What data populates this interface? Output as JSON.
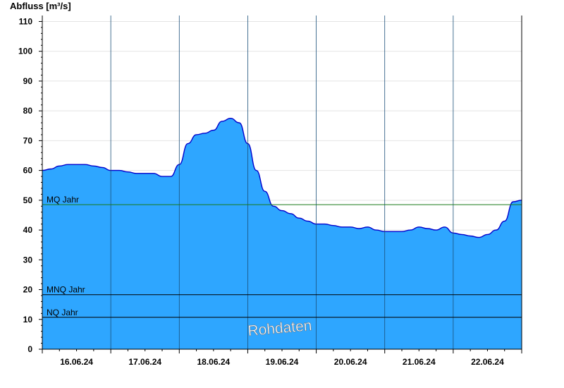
{
  "chart_data": {
    "type": "area",
    "ylabel": "Abfluss [m³/s]",
    "ylim": [
      0,
      112
    ],
    "yticks": [
      0,
      10,
      20,
      30,
      40,
      50,
      60,
      70,
      80,
      90,
      100,
      110
    ],
    "xlim_days": [
      "15.06.24 12:00",
      "22.06.24 12:00"
    ],
    "day_boundaries": [
      "16.06.24",
      "17.06.24",
      "18.06.24",
      "19.06.24",
      "20.06.24",
      "21.06.24",
      "22.06.24"
    ],
    "xtick_labels": [
      "16.06.24",
      "17.06.24",
      "18.06.24",
      "19.06.24",
      "20.06.24",
      "21.06.24",
      "22.06.24"
    ],
    "grid": true,
    "fill_color": "#2ea6ff",
    "line_color": "#0000cc",
    "watermark": "Rohdaten",
    "reference_lines": [
      {
        "label": "MQ Jahr",
        "value": 48.5,
        "color": "#1a7a1a"
      },
      {
        "label": "MNQ Jahr",
        "value": 18.3,
        "color": "#000000"
      },
      {
        "label": "NQ Jahr",
        "value": 10.7,
        "color": "#000000"
      }
    ],
    "series": [
      {
        "x": [
          "15.06.24 12:00",
          "15.06.24 15:00",
          "15.06.24 18:00",
          "15.06.24 21:00",
          "16.06.24 00:00",
          "16.06.24 03:00",
          "16.06.24 06:00",
          "16.06.24 09:00",
          "16.06.24 12:00",
          "16.06.24 15:00",
          "16.06.24 18:00",
          "16.06.24 21:00",
          "17.06.24 00:00",
          "17.06.24 03:00",
          "17.06.24 06:00",
          "17.06.24 09:00",
          "17.06.24 12:00",
          "17.06.24 15:00",
          "17.06.24 18:00",
          "17.06.24 21:00",
          "18.06.24 00:00",
          "18.06.24 03:00",
          "18.06.24 06:00",
          "18.06.24 09:00",
          "18.06.24 12:00",
          "18.06.24 15:00",
          "18.06.24 18:00",
          "18.06.24 21:00",
          "19.06.24 00:00",
          "19.06.24 03:00",
          "19.06.24 06:00",
          "19.06.24 09:00",
          "19.06.24 12:00",
          "19.06.24 15:00",
          "19.06.24 18:00",
          "19.06.24 21:00",
          "20.06.24 00:00",
          "20.06.24 03:00",
          "20.06.24 06:00",
          "20.06.24 09:00",
          "20.06.24 12:00",
          "20.06.24 15:00",
          "20.06.24 18:00",
          "20.06.24 21:00",
          "21.06.24 00:00",
          "21.06.24 03:00",
          "21.06.24 06:00",
          "21.06.24 09:00",
          "21.06.24 12:00",
          "21.06.24 15:00",
          "21.06.24 18:00",
          "21.06.24 21:00",
          "22.06.24 00:00",
          "22.06.24 03:00",
          "22.06.24 06:00",
          "22.06.24 09:00",
          "22.06.24 12:00"
        ],
        "values": [
          60,
          60.5,
          61.5,
          62,
          62,
          62,
          61.5,
          61,
          60,
          60,
          59.5,
          59,
          59,
          59,
          58,
          58,
          62,
          69,
          72,
          72.5,
          73.5,
          76.5,
          77.5,
          76,
          69,
          60,
          53,
          48,
          46.5,
          45.5,
          44,
          43,
          42,
          42,
          41.5,
          41,
          41,
          40.5,
          41,
          40,
          39.5,
          39.5,
          39.5,
          40,
          41,
          40.5,
          40,
          41,
          39,
          38.5,
          38,
          37.5,
          38.5,
          40,
          43,
          49.5,
          50
        ]
      }
    ]
  }
}
